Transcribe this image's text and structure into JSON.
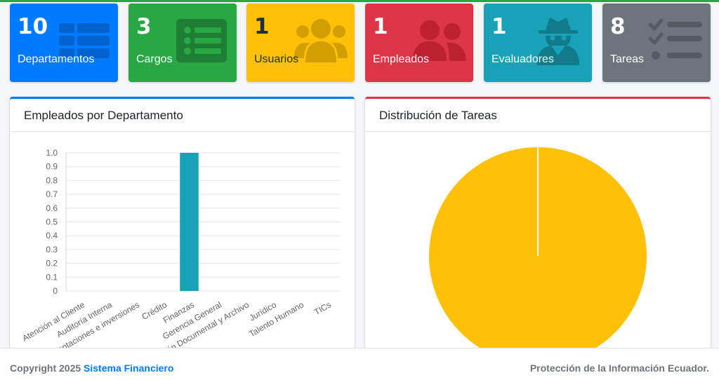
{
  "colors": {
    "blue": "#007bff",
    "green": "#28a745",
    "yellow": "#ffc107",
    "red": "#dc3545",
    "teal": "#17a2b8",
    "gray": "#6c757d"
  },
  "stats": [
    {
      "value": "10",
      "label": "Departamentos",
      "icon": "table-icon"
    },
    {
      "value": "3",
      "label": "Cargos",
      "icon": "list-icon"
    },
    {
      "value": "1",
      "label": "Usuarios",
      "icon": "users-icon"
    },
    {
      "value": "1",
      "label": "Empleados",
      "icon": "user-friends-icon"
    },
    {
      "value": "1",
      "label": "Evaluadores",
      "icon": "user-secret-icon"
    },
    {
      "value": "8",
      "label": "Tareas",
      "icon": "tasks-icon"
    }
  ],
  "cards": {
    "employees_title": "Empleados por Departamento",
    "tasks_title": "Distribución de Tareas"
  },
  "chart_data": [
    {
      "type": "bar",
      "title": "",
      "categories": [
        "Atención al Cliente",
        "Auditoría Interna",
        "Captaciones e inversiones",
        "Crédito",
        "Finanzas",
        "Gerencia General",
        "Gestión Documental y Archivo",
        "Jurídico",
        "Talento Humano",
        "TICs"
      ],
      "values": [
        0,
        0,
        0,
        0,
        1,
        0,
        0,
        0,
        0,
        0
      ],
      "ylim": [
        0,
        1
      ],
      "yticks": [
        "0",
        "0.1",
        "0.2",
        "0.3",
        "0.4",
        "0.5",
        "0.6",
        "0.7",
        "0.8",
        "0.9",
        "1.0"
      ],
      "bar_color": "#17a2b8",
      "grid": true
    },
    {
      "type": "pie",
      "values": [
        1
      ],
      "colors": [
        "#ffc107"
      ]
    }
  ],
  "footer": {
    "copyright": "Copyright 2025 ",
    "brand": "Sistema Financiero",
    "right_text": "Protección de la Información Ecuador."
  }
}
